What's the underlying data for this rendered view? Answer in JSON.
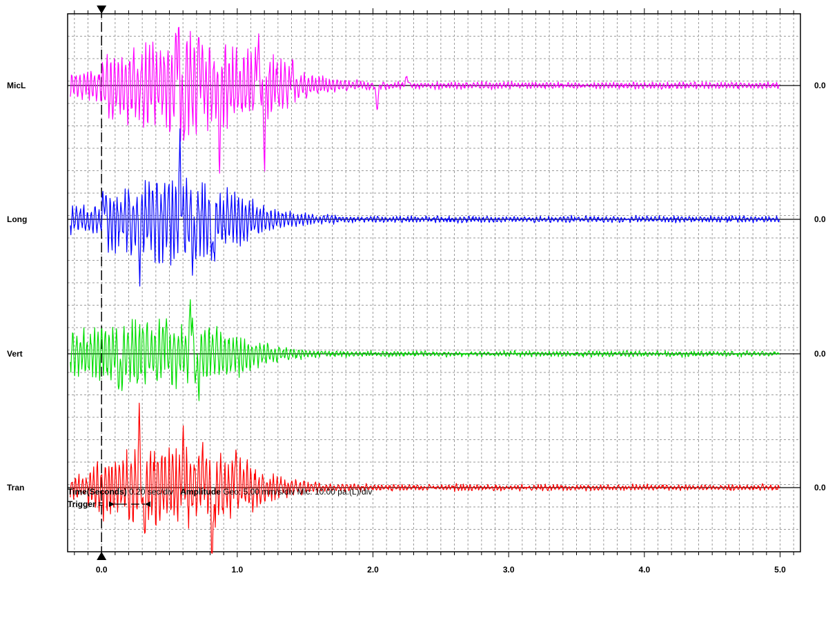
{
  "chart_data": {
    "type": "line",
    "xlim": [
      -0.25,
      5.15
    ],
    "xticks": [
      0.0,
      1.0,
      2.0,
      3.0,
      4.0,
      5.0
    ],
    "xtick_labels": [
      "0.0",
      "1.0",
      "2.0",
      "3.0",
      "4.0",
      "5.0"
    ],
    "x_minor_step": 0.1,
    "trigger_time": 0.0,
    "grid": true,
    "channels": [
      {
        "name": "MicL",
        "zero_label": "0.0",
        "color": "#ff00ff",
        "amplitude_divs": 2.5,
        "bursts": [
          [
            0.0,
            1.25
          ]
        ],
        "events": [
          {
            "t": 0.56,
            "v": 2.6
          },
          {
            "t": 0.6,
            "v": -2.0
          },
          {
            "t": 0.72,
            "v": 1.5
          },
          {
            "t": 0.87,
            "v": -2.1
          },
          {
            "t": 1.15,
            "v": 1.8
          },
          {
            "t": 1.2,
            "v": -2.4
          },
          {
            "t": 1.4,
            "v": 0.7
          },
          {
            "t": 2.03,
            "v": -1.0
          },
          {
            "t": 2.25,
            "v": 0.4
          }
        ]
      },
      {
        "name": "Long",
        "zero_label": "0.0",
        "color": "#0000ff",
        "amplitude_divs": 2.3,
        "bursts": [
          [
            0.0,
            1.0
          ]
        ],
        "events": [
          {
            "t": 0.58,
            "v": 2.3
          },
          {
            "t": 0.68,
            "v": -1.5
          },
          {
            "t": 0.82,
            "v": -1.7
          },
          {
            "t": 0.28,
            "v": -1.6
          },
          {
            "t": 0.02,
            "v": 1.0
          }
        ]
      },
      {
        "name": "Vert",
        "zero_label": "0.0",
        "color": "#00dd00",
        "amplitude_divs": 1.8,
        "bursts": [
          [
            -0.25,
            1.0
          ]
        ],
        "events": [
          {
            "t": 0.66,
            "v": 2.1
          },
          {
            "t": 0.71,
            "v": -1.5
          },
          {
            "t": 0.47,
            "v": 1.0
          },
          {
            "t": 0.14,
            "v": -1.0
          }
        ]
      },
      {
        "name": "Tran",
        "zero_label": "0.0",
        "color": "#ff0000",
        "amplitude_divs": 2.2,
        "bursts": [
          [
            -0.1,
            1.05
          ]
        ],
        "events": [
          {
            "t": 0.28,
            "v": 2.3
          },
          {
            "t": 0.31,
            "v": -1.7
          },
          {
            "t": 0.6,
            "v": 1.8
          },
          {
            "t": 0.82,
            "v": -2.7
          },
          {
            "t": 0.75,
            "v": 1.4
          },
          {
            "t": 0.98,
            "v": 1.0
          }
        ]
      }
    ]
  },
  "footer": {
    "time_label": "Time(Seconds)",
    "time_value": "0.20 sec/div",
    "amplitude_label": "Amplitude",
    "amplitude_value": "Geo: 5.00 mm/s/div Mic: 10.00 pa.(L)/div",
    "trigger_label": "Trigger ="
  }
}
